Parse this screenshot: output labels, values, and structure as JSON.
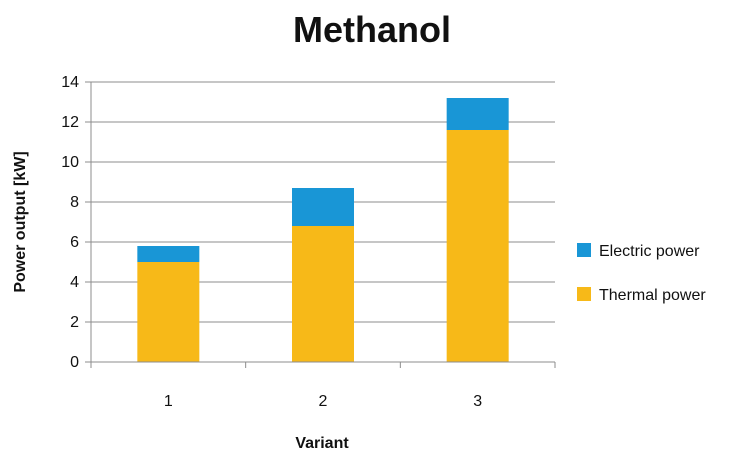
{
  "chart_data": {
    "type": "bar",
    "stacked": true,
    "title": "Methanol",
    "xlabel": "Variant",
    "ylabel": "Power output [kW]",
    "categories": [
      "1",
      "2",
      "3"
    ],
    "ylim": [
      0,
      14
    ],
    "yticks": [
      0,
      2,
      4,
      6,
      8,
      10,
      12,
      14
    ],
    "grid": true,
    "legend_position": "right",
    "series": [
      {
        "name": "Thermal power",
        "color": "#F7B918",
        "values": [
          5.0,
          6.8,
          11.6
        ]
      },
      {
        "name": "Electric power",
        "color": "#1996D6",
        "values": [
          0.8,
          1.9,
          1.6
        ]
      }
    ],
    "legend": [
      {
        "name": "Electric power",
        "color": "#1996D6"
      },
      {
        "name": "Thermal power",
        "color": "#F7B918"
      }
    ]
  }
}
